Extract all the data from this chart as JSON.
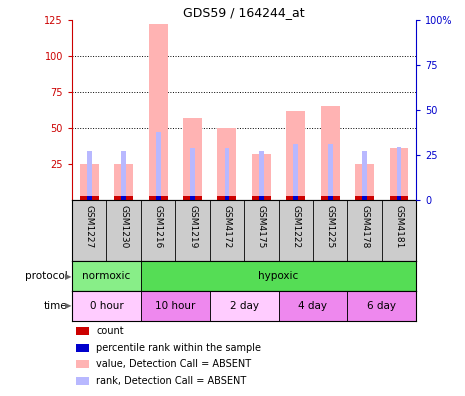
{
  "title": "GDS59 / 164244_at",
  "samples": [
    "GSM1227",
    "GSM1230",
    "GSM1216",
    "GSM1219",
    "GSM4172",
    "GSM4175",
    "GSM1222",
    "GSM1225",
    "GSM4178",
    "GSM4181"
  ],
  "value_absent": [
    25,
    25,
    122,
    57,
    50,
    32,
    62,
    65,
    25,
    36
  ],
  "rank_absent": [
    34,
    34,
    47,
    36,
    36,
    34,
    39,
    39,
    34,
    37
  ],
  "ylim_left": [
    0,
    125
  ],
  "ylim_right": [
    0,
    100
  ],
  "yticks_left": [
    25,
    50,
    75,
    100,
    125
  ],
  "yticks_right": [
    0,
    25,
    50,
    75,
    100
  ],
  "ytick_labels_right": [
    "0",
    "25",
    "50",
    "75",
    "100%"
  ],
  "left_axis_color": "#cc0000",
  "right_axis_color": "#0000cc",
  "bar_absent_color": "#ffb3b3",
  "rank_absent_color": "#b8b8ff",
  "bar_present_color": "#cc0000",
  "rank_present_color": "#0000cc",
  "protocol_groups": [
    {
      "label": "normoxic",
      "start": 0,
      "end": 2,
      "color": "#88ee88"
    },
    {
      "label": "hypoxic",
      "start": 2,
      "end": 10,
      "color": "#55dd55"
    }
  ],
  "time_groups": [
    {
      "label": "0 hour",
      "start": 0,
      "end": 2,
      "color": "#ffccff"
    },
    {
      "label": "10 hour",
      "start": 2,
      "end": 4,
      "color": "#ee88ee"
    },
    {
      "label": "2 day",
      "start": 4,
      "end": 6,
      "color": "#ffccff"
    },
    {
      "label": "4 day",
      "start": 6,
      "end": 8,
      "color": "#ee88ee"
    },
    {
      "label": "6 day",
      "start": 8,
      "end": 10,
      "color": "#ee88ee"
    }
  ],
  "legend_items": [
    {
      "label": "count",
      "color": "#cc0000"
    },
    {
      "label": "percentile rank within the sample",
      "color": "#0000cc"
    },
    {
      "label": "value, Detection Call = ABSENT",
      "color": "#ffb3b3"
    },
    {
      "label": "rank, Detection Call = ABSENT",
      "color": "#b8b8ff"
    }
  ],
  "protocol_label": "protocol",
  "time_label": "time",
  "bg_color": "#ffffff",
  "sample_area_color": "#cccccc"
}
